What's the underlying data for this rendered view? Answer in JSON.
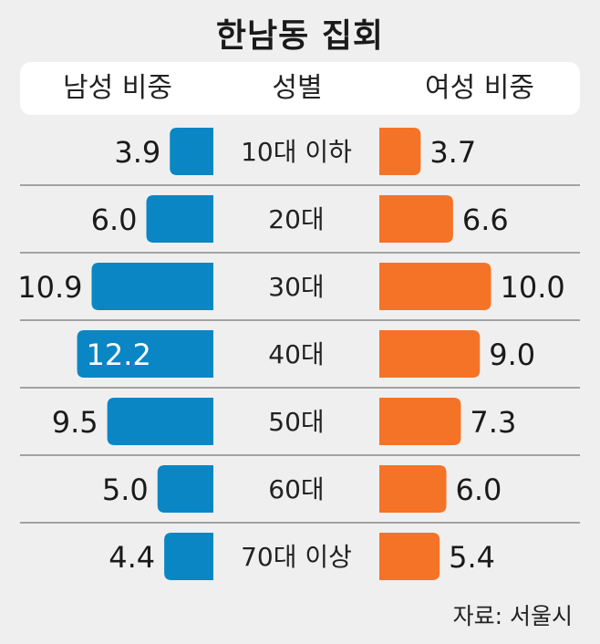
{
  "title": "한남동 집회",
  "header": {
    "male": "남성 비중",
    "gender": "성별",
    "female": "여성 비중"
  },
  "source": "자료: 서울시",
  "colors": {
    "male": "#0a86c4",
    "female": "#f47326",
    "background": "#efefef"
  },
  "chart_data": {
    "type": "bar",
    "categories": [
      "10대 이하",
      "20대",
      "30대",
      "40대",
      "50대",
      "60대",
      "70대 이상"
    ],
    "series": [
      {
        "name": "남성 비중",
        "values": [
          3.9,
          6.0,
          10.9,
          12.2,
          9.5,
          5.0,
          4.4
        ],
        "labels": [
          "3.9",
          "6.0",
          "10.9",
          "12.2",
          "9.5",
          "5.0",
          "4.4"
        ]
      },
      {
        "name": "여성 비중",
        "values": [
          3.7,
          6.6,
          10.0,
          9.0,
          7.3,
          6.0,
          5.4
        ],
        "labels": [
          "3.7",
          "6.6",
          "10.0",
          "9.0",
          "7.3",
          "6.0",
          "5.4"
        ]
      }
    ]
  }
}
